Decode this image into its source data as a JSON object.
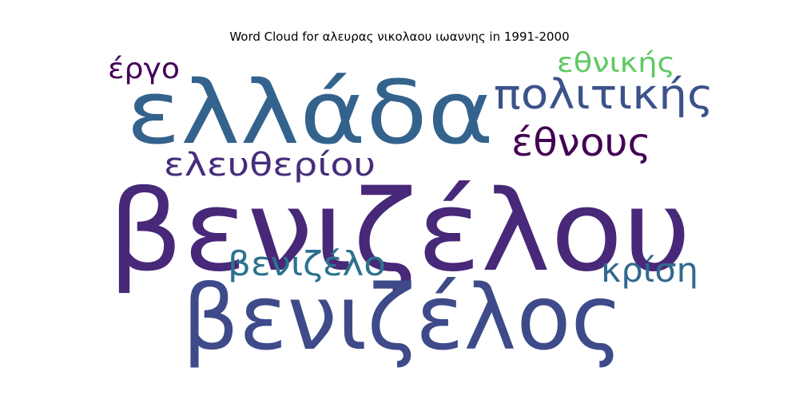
{
  "chart_data": {
    "type": "wordcloud",
    "title": "Word Cloud for αλευρας νικολαου ιωαννης in 1991-2000",
    "words": [
      {
        "text": "βενιζέλου",
        "color": "#482878"
      },
      {
        "text": "ελλάδα",
        "color": "#33638d"
      },
      {
        "text": "βενιζέλος",
        "color": "#3e4a89"
      },
      {
        "text": "πολιτικής",
        "color": "#3b528b"
      },
      {
        "text": "έθνους",
        "color": "#440154"
      },
      {
        "text": "ελευθερίου",
        "color": "#472d7b"
      },
      {
        "text": "έργο",
        "color": "#440154"
      },
      {
        "text": "εθνικής",
        "color": "#5ec962"
      },
      {
        "text": "βενιζέλο",
        "color": "#2c728e"
      },
      {
        "text": "κρίση",
        "color": "#31688e"
      }
    ]
  }
}
